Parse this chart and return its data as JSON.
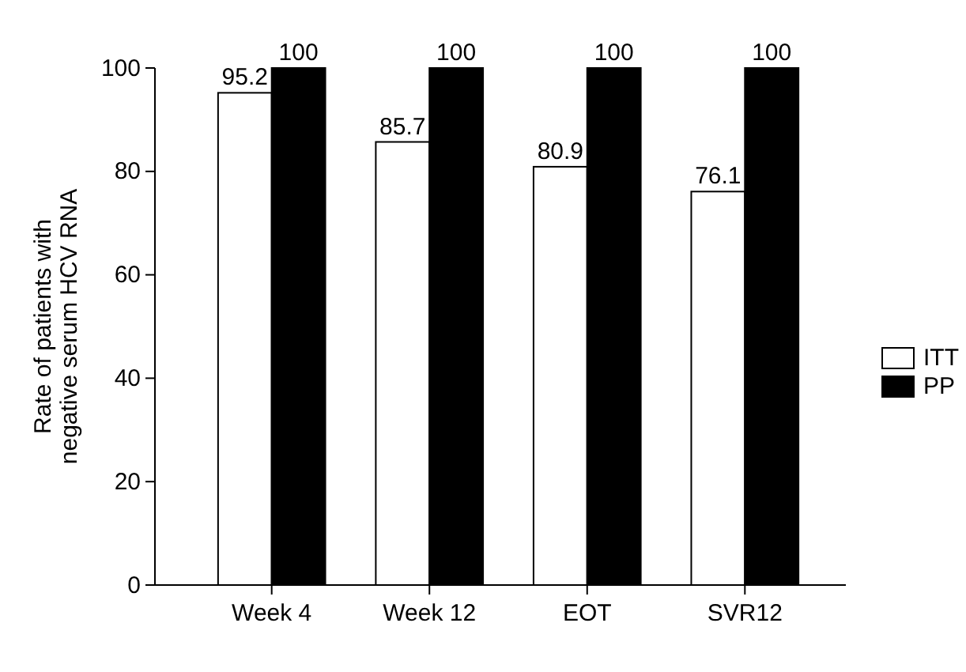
{
  "chart_data": {
    "type": "bar",
    "ylabel": "Rate of patients with negative serum HCV RNA",
    "categories": [
      "Week 4",
      "Week 12",
      "EOT",
      "SVR12"
    ],
    "series": [
      {
        "name": "ITT",
        "color": "#ffffff",
        "values": [
          95.2,
          85.7,
          80.9,
          76.1
        ]
      },
      {
        "name": "PP",
        "color": "#000000",
        "values": [
          100,
          100,
          100,
          100
        ]
      }
    ],
    "ylim": [
      0,
      100
    ],
    "yticks": [
      0,
      20,
      40,
      60,
      80,
      100
    ],
    "data_labels": true,
    "legend": "right",
    "grid": false
  }
}
